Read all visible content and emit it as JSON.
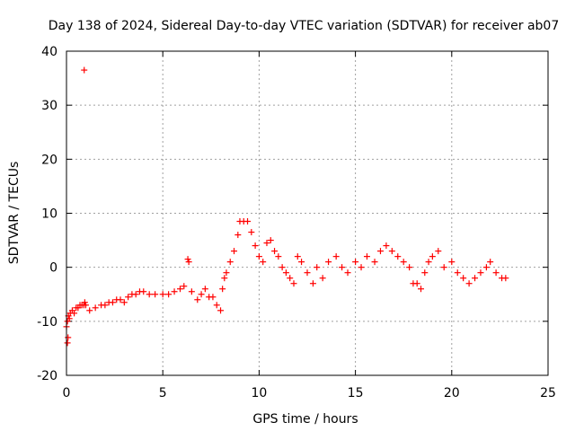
{
  "chart_data": {
    "type": "scatter",
    "title": "Day 138 of 2024, Sidereal Day-to-day VTEC variation (SDTVAR) for receiver ab07",
    "xlabel": "GPS time / hours",
    "ylabel": "SDTVAR / TECUs",
    "xlim": [
      0,
      25
    ],
    "ylim": [
      -20,
      40
    ],
    "x_ticks": [
      0,
      5,
      10,
      15,
      20,
      25
    ],
    "y_ticks": [
      -20,
      -10,
      0,
      10,
      20,
      30,
      40
    ],
    "grid": true,
    "marker": "+",
    "color": "#ff0000",
    "series": [
      {
        "name": "SDTVAR",
        "x": [
          0.0,
          0.05,
          0.1,
          0.15,
          0.2,
          0.3,
          0.4,
          0.5,
          0.6,
          0.7,
          0.8,
          0.9,
          0.95,
          0.05,
          0.08,
          1.0,
          1.2,
          1.5,
          1.8,
          2.0,
          2.2,
          2.4,
          2.6,
          2.8,
          3.0,
          3.2,
          3.4,
          3.6,
          3.8,
          4.0,
          4.3,
          4.6,
          5.0,
          5.3,
          5.6,
          5.9,
          6.1,
          6.3,
          6.35,
          6.5,
          6.8,
          7.0,
          7.2,
          7.4,
          7.6,
          7.8,
          8.0,
          8.1,
          8.2,
          8.3,
          8.5,
          8.7,
          8.9,
          9.0,
          9.2,
          9.4,
          9.6,
          9.8,
          10.0,
          10.2,
          10.4,
          10.6,
          10.8,
          11.0,
          11.2,
          11.4,
          11.6,
          11.8,
          12.0,
          12.2,
          12.5,
          12.8,
          13.0,
          13.3,
          13.6,
          14.0,
          14.3,
          14.6,
          15.0,
          15.3,
          15.6,
          16.0,
          16.3,
          16.6,
          16.9,
          17.2,
          17.5,
          17.8,
          18.0,
          18.2,
          18.4,
          18.6,
          18.8,
          19.0,
          19.3,
          19.6,
          20.0,
          20.3,
          20.6,
          20.9,
          21.2,
          21.5,
          21.8,
          22.0,
          22.3,
          22.6,
          22.8,
          0.92
        ],
        "y": [
          -11,
          -10,
          -9,
          -9.5,
          -8.5,
          -8,
          -8.5,
          -7.5,
          -7.5,
          -7,
          -7,
          -7,
          -6.5,
          -14,
          -13,
          -7,
          -8,
          -7.5,
          -7,
          -7,
          -6.5,
          -6.5,
          -6,
          -6,
          -6.5,
          -5.5,
          -5,
          -5,
          -4.5,
          -4.5,
          -5,
          -5,
          -5,
          -5,
          -4.5,
          -4,
          -3.5,
          1.5,
          1.0,
          -4.5,
          -6,
          -5,
          -4,
          -5.5,
          -5.5,
          -7,
          -8,
          -4,
          -2,
          -1,
          1,
          3,
          6,
          8.5,
          8.5,
          8.5,
          6.5,
          4,
          2,
          1,
          4.5,
          5,
          3,
          2,
          0,
          -1,
          -2,
          -3,
          2,
          1,
          -1,
          -3,
          0,
          -2,
          1,
          2,
          0,
          -1,
          1,
          0,
          2,
          1,
          3,
          4,
          3,
          2,
          1,
          0,
          -3,
          -3,
          -4,
          -1,
          1,
          2,
          3,
          0,
          1,
          -1,
          -2,
          -3,
          -2,
          -1,
          0,
          1,
          -1,
          -2,
          -2,
          36.5
        ]
      }
    ]
  }
}
